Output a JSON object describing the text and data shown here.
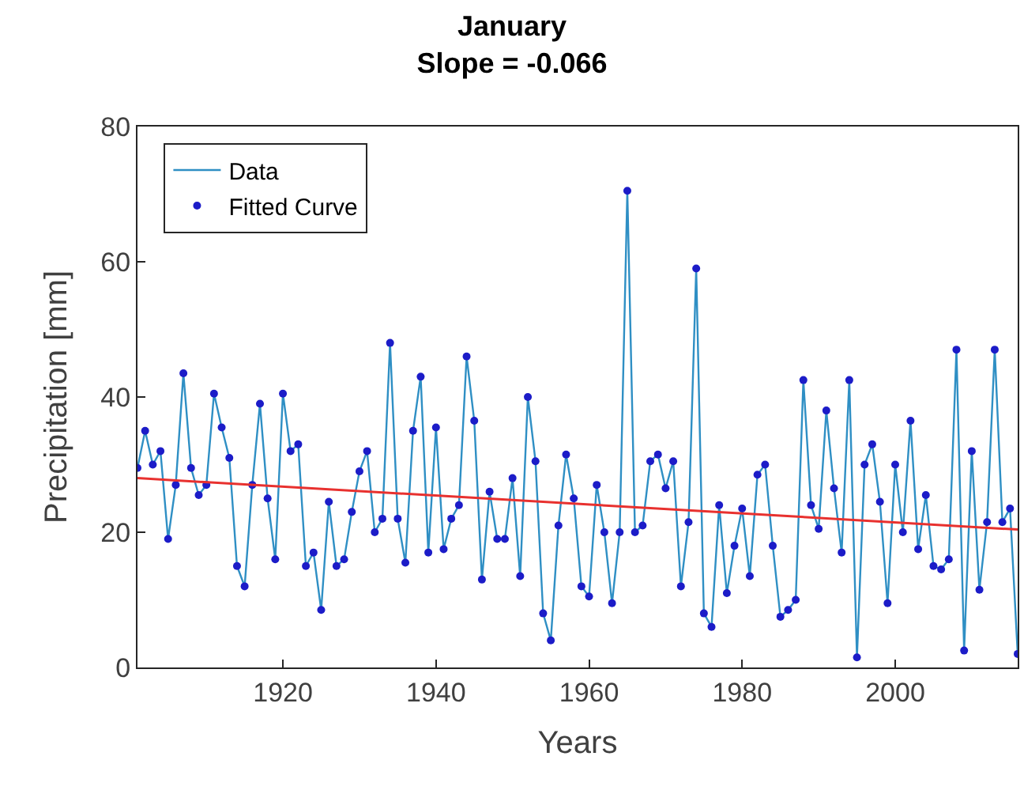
{
  "chart_data": {
    "type": "line",
    "title": "January",
    "subtitle": "Slope = -0.066",
    "xlabel": "Years",
    "ylabel": "Precipitation [mm]",
    "x": [
      1901,
      1902,
      1903,
      1904,
      1905,
      1906,
      1907,
      1908,
      1909,
      1910,
      1911,
      1912,
      1913,
      1914,
      1915,
      1916,
      1917,
      1918,
      1919,
      1920,
      1921,
      1922,
      1923,
      1924,
      1925,
      1926,
      1927,
      1928,
      1929,
      1930,
      1931,
      1932,
      1933,
      1934,
      1935,
      1936,
      1937,
      1938,
      1939,
      1940,
      1941,
      1942,
      1943,
      1944,
      1945,
      1946,
      1947,
      1948,
      1949,
      1950,
      1951,
      1952,
      1953,
      1954,
      1955,
      1956,
      1957,
      1958,
      1959,
      1960,
      1961,
      1962,
      1963,
      1964,
      1965,
      1966,
      1967,
      1968,
      1969,
      1970,
      1971,
      1972,
      1973,
      1974,
      1975,
      1976,
      1977,
      1978,
      1979,
      1980,
      1981,
      1982,
      1983,
      1984,
      1985,
      1986,
      1987,
      1988,
      1989,
      1990,
      1991,
      1992,
      1993,
      1994,
      1995,
      1996,
      1997,
      1998,
      1999,
      2000,
      2001,
      2002,
      2003,
      2004,
      2005,
      2006,
      2007,
      2008,
      2009,
      2010,
      2011,
      2012,
      2013,
      2014,
      2015,
      2016
    ],
    "series": [
      {
        "name": "Data",
        "marker": "none",
        "color": "#2f8fc4",
        "values": [
          29.5,
          35,
          30,
          32,
          19,
          27,
          43.5,
          29.5,
          25.5,
          27,
          40.5,
          35.5,
          31,
          15,
          12,
          27,
          39,
          25,
          16,
          40.5,
          32,
          33,
          15,
          17,
          8.5,
          24.5,
          15,
          16,
          23,
          29,
          32,
          20,
          22,
          48,
          22,
          15.5,
          35,
          43,
          17,
          35.5,
          17.5,
          22,
          24,
          46,
          36.5,
          13,
          26,
          19,
          19,
          28,
          13.5,
          40,
          30.5,
          8,
          4,
          21,
          31.5,
          25,
          12,
          10.5,
          27,
          20,
          9.5,
          20,
          70.5,
          20,
          21,
          30.5,
          31.5,
          26.5,
          30.5,
          12,
          21.5,
          59,
          8,
          6,
          24,
          11,
          18,
          23.5,
          13.5,
          28.5,
          30,
          18,
          7.5,
          8.5,
          10,
          42.5,
          24,
          20.5,
          38,
          26.5,
          17,
          42.5,
          1.5,
          30,
          33,
          24.5,
          9.5,
          30,
          20,
          36.5,
          17.5,
          25.5,
          15,
          14.5,
          16,
          47,
          2.5,
          32,
          11.5,
          21.5,
          47,
          21.5,
          23.5,
          2
        ]
      },
      {
        "name": "Fitted Curve",
        "type": "scatter",
        "marker": "circle",
        "color": "#1c1cc8",
        "values": [
          29.5,
          35,
          30,
          32,
          19,
          27,
          43.5,
          29.5,
          25.5,
          27,
          40.5,
          35.5,
          31,
          15,
          12,
          27,
          39,
          25,
          16,
          40.5,
          32,
          33,
          15,
          17,
          8.5,
          24.5,
          15,
          16,
          23,
          29,
          32,
          20,
          22,
          48,
          22,
          15.5,
          35,
          43,
          17,
          35.5,
          17.5,
          22,
          24,
          46,
          36.5,
          13,
          26,
          19,
          19,
          28,
          13.5,
          40,
          30.5,
          8,
          4,
          21,
          31.5,
          25,
          12,
          10.5,
          27,
          20,
          9.5,
          20,
          70.5,
          20,
          21,
          30.5,
          31.5,
          26.5,
          30.5,
          12,
          21.5,
          59,
          8,
          6,
          24,
          11,
          18,
          23.5,
          13.5,
          28.5,
          30,
          18,
          7.5,
          8.5,
          10,
          42.5,
          24,
          20.5,
          38,
          26.5,
          17,
          42.5,
          1.5,
          30,
          33,
          24.5,
          9.5,
          30,
          20,
          36.5,
          17.5,
          25.5,
          15,
          14.5,
          16,
          47,
          2.5,
          32,
          11.5,
          21.5,
          47,
          21.5,
          23.5,
          2
        ]
      },
      {
        "type": "line",
        "marker": "none",
        "color": "#e8312f",
        "x": [
          1901,
          2016
        ],
        "values": [
          28,
          20.4
        ]
      }
    ],
    "xlim": [
      1901,
      2016
    ],
    "xticks": [
      1920,
      1940,
      1960,
      1980,
      2000
    ],
    "ylim": [
      0,
      80
    ],
    "yticks": [
      0,
      20,
      40,
      60,
      80
    ],
    "legend": "top left"
  }
}
